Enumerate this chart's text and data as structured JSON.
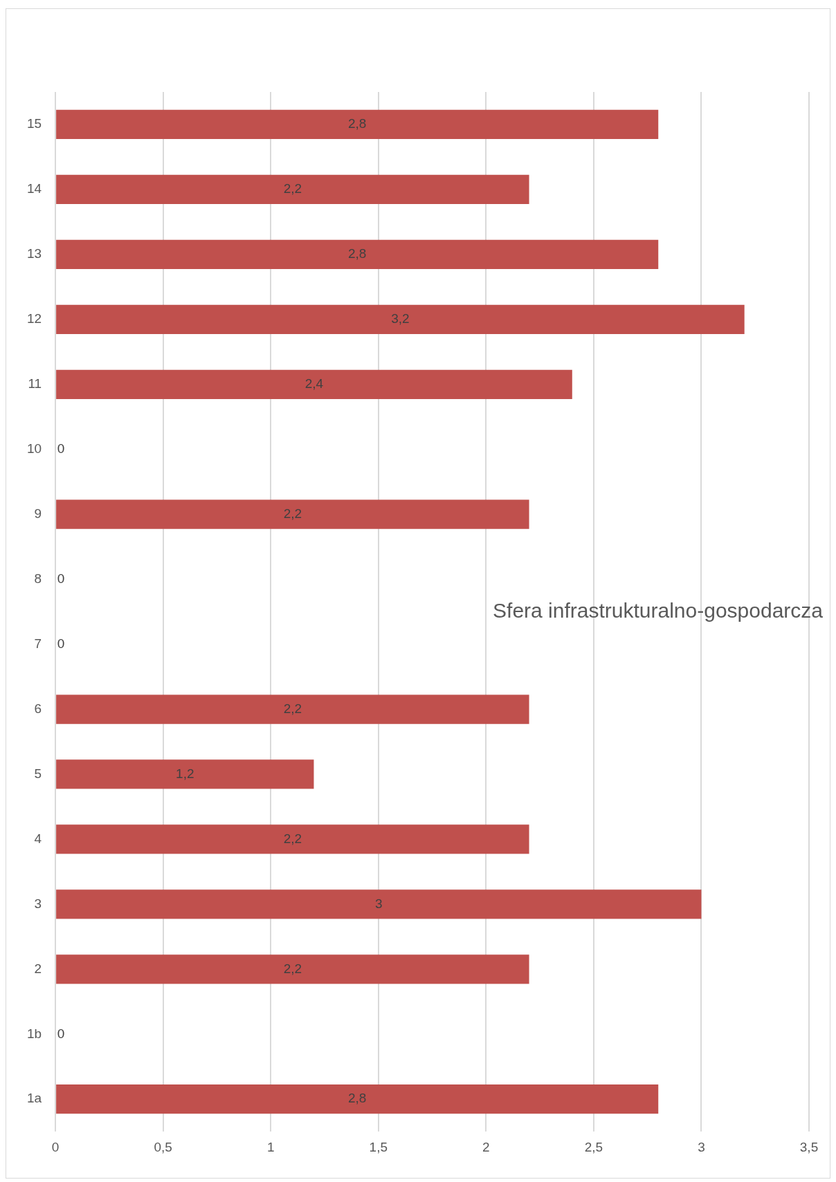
{
  "chart_data": {
    "type": "bar",
    "orientation": "horizontal",
    "title": "Sfera infrastrukturalno-gospodarcza",
    "categories": [
      "15",
      "14",
      "13",
      "12",
      "11",
      "10",
      "9",
      "8",
      "7",
      "6",
      "5",
      "4",
      "3",
      "2",
      "1b",
      "1a"
    ],
    "values": [
      2.8,
      2.2,
      2.8,
      3.2,
      2.4,
      0,
      2.2,
      0,
      0,
      2.2,
      1.2,
      2.2,
      3,
      2.2,
      0,
      2.8
    ],
    "value_labels": [
      "2,8",
      "2,2",
      "2,8",
      "3,2",
      "2,4",
      "0",
      "2,2",
      "0",
      "0",
      "2,2",
      "1,2",
      "2,2",
      "3",
      "2,2",
      "0",
      "2,8"
    ],
    "color": "#c0504d",
    "xlim": [
      0,
      3.5
    ],
    "xticks": [
      0,
      {
        "value": 0.5,
        "label": "0,5"
      },
      1,
      {
        "value": 1.5,
        "label": "1,5"
      },
      2,
      {
        "value": 2.5,
        "label": "2,5"
      },
      3,
      {
        "value": 3.5,
        "label": "3,5"
      }
    ],
    "grid": "x",
    "legend": false
  }
}
